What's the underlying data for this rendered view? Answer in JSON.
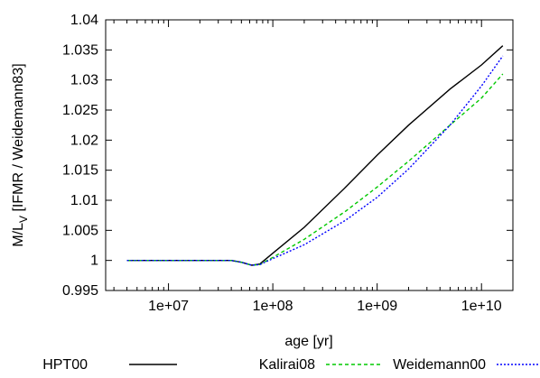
{
  "chart_data": {
    "type": "line",
    "xlabel": "age [yr]",
    "ylabel_main": "M/L",
    "ylabel_sub": "V",
    "ylabel_rest": " [IFMR / Weidemann83]",
    "x_scale": "log",
    "xlim": [
      2500000,
      20000000000
    ],
    "ylim": [
      0.995,
      1.04
    ],
    "x_ticks": [
      {
        "value": 10000000,
        "label": "1e+07"
      },
      {
        "value": 100000000,
        "label": "1e+08"
      },
      {
        "value": 1000000000,
        "label": "1e+09"
      },
      {
        "value": 10000000000,
        "label": "1e+10"
      }
    ],
    "y_ticks": [
      {
        "value": 0.995,
        "label": "0.995"
      },
      {
        "value": 1.0,
        "label": "1"
      },
      {
        "value": 1.005,
        "label": "1.005"
      },
      {
        "value": 1.01,
        "label": "1.01"
      },
      {
        "value": 1.015,
        "label": "1.015"
      },
      {
        "value": 1.02,
        "label": "1.02"
      },
      {
        "value": 1.025,
        "label": "1.025"
      },
      {
        "value": 1.03,
        "label": "1.03"
      },
      {
        "value": 1.035,
        "label": "1.035"
      },
      {
        "value": 1.04,
        "label": "1.04"
      }
    ],
    "grid": false,
    "legend_position": "bottom",
    "series": [
      {
        "name": "HPT00",
        "color": "#000000",
        "dash": "solid",
        "x": [
          4000000,
          10000000,
          20000000,
          40000000,
          50000000,
          63000000,
          75000000,
          100000000,
          200000000,
          500000000,
          1000000000,
          2000000000,
          5000000000,
          10000000000,
          16000000000
        ],
        "y": [
          1.0,
          1.0,
          1.0,
          1.0,
          0.9997,
          0.9992,
          0.9994,
          1.0012,
          1.0055,
          1.0122,
          1.0175,
          1.0225,
          1.0285,
          1.0325,
          1.0357
        ]
      },
      {
        "name": "Kalirai08",
        "color": "#00c800",
        "dash": "dashed",
        "x": [
          4000000,
          10000000,
          20000000,
          40000000,
          50000000,
          63000000,
          75000000,
          100000000,
          200000000,
          500000000,
          1000000000,
          2000000000,
          5000000000,
          10000000000,
          16000000000
        ],
        "y": [
          1.0,
          1.0,
          1.0,
          1.0,
          0.9997,
          0.9992,
          0.9993,
          1.0005,
          1.0035,
          1.0082,
          1.0122,
          1.0165,
          1.0225,
          1.027,
          1.031
        ]
      },
      {
        "name": "Weidemann00",
        "color": "#0000ff",
        "dash": "dotted",
        "x": [
          4000000,
          10000000,
          20000000,
          40000000,
          50000000,
          63000000,
          75000000,
          100000000,
          200000000,
          500000000,
          1000000000,
          2000000000,
          5000000000,
          10000000000,
          16000000000
        ],
        "y": [
          1.0,
          1.0,
          1.0,
          1.0,
          0.9997,
          0.9992,
          0.9993,
          1.0003,
          1.0026,
          1.0067,
          1.0105,
          1.0152,
          1.0225,
          1.029,
          1.034
        ]
      }
    ]
  }
}
